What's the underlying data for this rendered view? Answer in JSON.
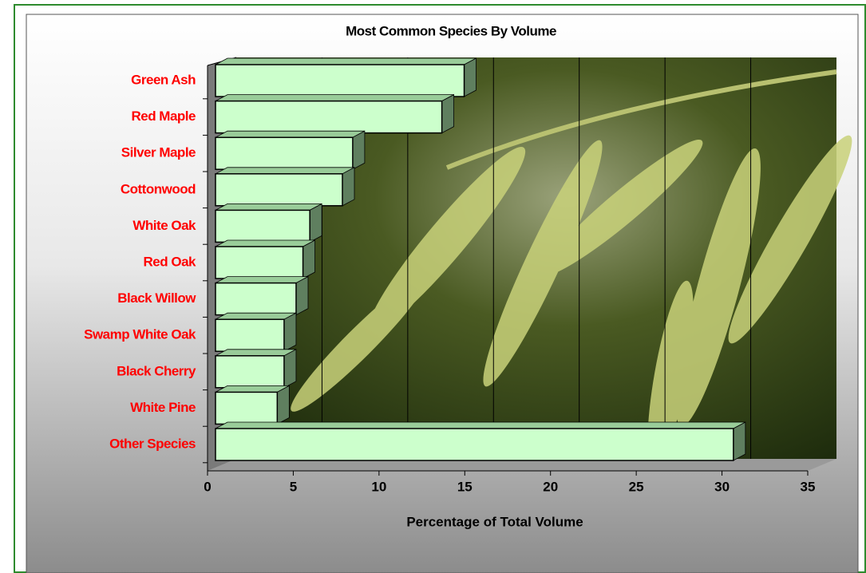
{
  "chart_data": {
    "type": "bar",
    "orientation": "horizontal",
    "title": "Most Common Species By Volume",
    "x_label": "Percentage of Total Volume",
    "categories": [
      "Green Ash",
      "Red Maple",
      "Silver Maple",
      "Cottonwood",
      "White Oak",
      "Red Oak",
      "Black Willow",
      "Swamp White Oak",
      "Black Cherry",
      "White Pine",
      "Other Species"
    ],
    "values": [
      14.5,
      13.2,
      8.0,
      7.4,
      5.5,
      5.1,
      4.7,
      4.0,
      4.0,
      3.6,
      30.2
    ],
    "color": "#ccffcc",
    "label_color": "#ff0000",
    "xlim": [
      0,
      35
    ],
    "xticks": [
      0,
      5,
      10,
      15,
      20,
      25,
      30,
      35
    ],
    "grid": true
  }
}
